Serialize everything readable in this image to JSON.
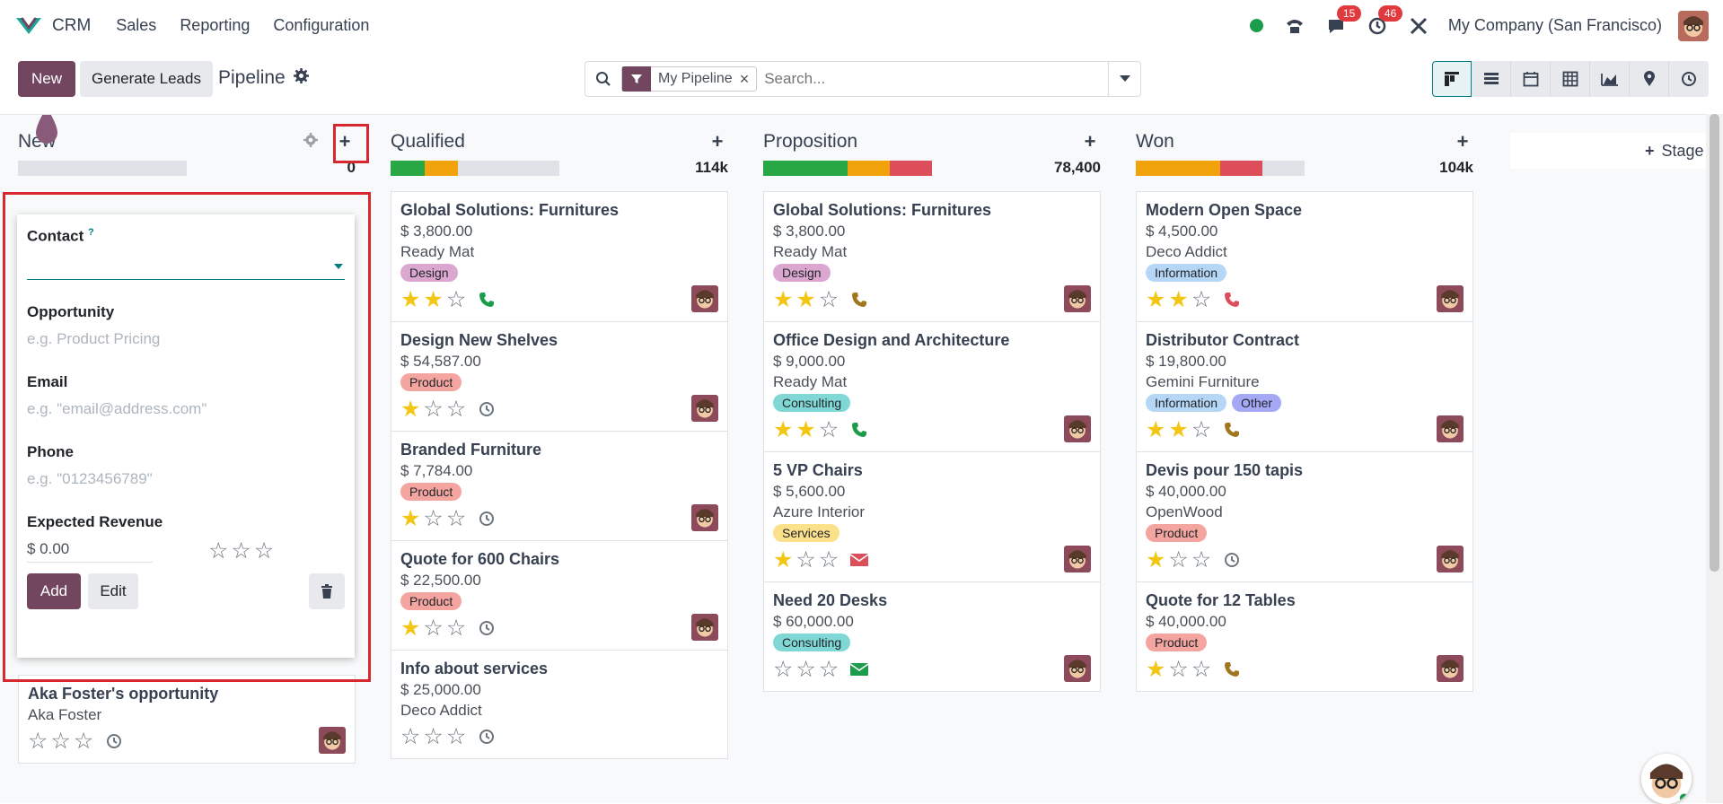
{
  "navbar": {
    "app_name": "CRM",
    "menus": [
      "Sales",
      "Reporting",
      "Configuration"
    ],
    "messages_count": "15",
    "activities_count": "46",
    "company": "My Company (San Francisco)"
  },
  "control": {
    "new_label": "New",
    "generate_label": "Generate Leads",
    "title": "Pipeline",
    "facet_label": "My Pipeline",
    "search_placeholder": "Search..."
  },
  "columns": [
    {
      "title": "New",
      "total": "0",
      "progress": []
    },
    {
      "title": "Qualified",
      "total": "114k",
      "progress": [
        {
          "color": "#28a745",
          "pct": 20
        },
        {
          "color": "#f0a30a",
          "pct": 20
        }
      ]
    },
    {
      "title": "Proposition",
      "total": "78,400",
      "progress": [
        {
          "color": "#28a745",
          "pct": 50
        },
        {
          "color": "#f0a30a",
          "pct": 25
        },
        {
          "color": "#dc4f5a",
          "pct": 25
        }
      ]
    },
    {
      "title": "Won",
      "total": "104k",
      "progress": [
        {
          "color": "#f0a30a",
          "pct": 50
        },
        {
          "color": "#dc4f5a",
          "pct": 25
        }
      ]
    }
  ],
  "quick_create": {
    "contact_label": "Contact",
    "opportunity_label": "Opportunity",
    "opportunity_placeholder": "e.g. Product Pricing",
    "email_label": "Email",
    "email_placeholder": "e.g. \"email@address.com\"",
    "phone_label": "Phone",
    "phone_placeholder": "e.g. \"0123456789\"",
    "revenue_label": "Expected Revenue",
    "revenue_value": "$ 0.00",
    "add_label": "Add",
    "edit_label": "Edit"
  },
  "new_col_cards": [
    {
      "title": "Aka Foster's opportunity",
      "customer": "Aka Foster"
    }
  ],
  "qualified_cards": [
    {
      "title": "Global Solutions: Furnitures",
      "amount": "$ 3,800.00",
      "customer": "Ready Mat",
      "tags": [
        {
          "label": "Design",
          "bg": "#dba7d1"
        }
      ]
    },
    {
      "title": "Design New Shelves",
      "amount": "$ 54,587.00",
      "tags": [
        {
          "label": "Product",
          "bg": "#f5a5a0"
        }
      ]
    },
    {
      "title": "Branded Furniture",
      "amount": "$ 7,784.00",
      "tags": [
        {
          "label": "Product",
          "bg": "#f5a5a0"
        }
      ]
    },
    {
      "title": "Quote for 600 Chairs",
      "amount": "$ 22,500.00",
      "tags": [
        {
          "label": "Product",
          "bg": "#f5a5a0"
        }
      ]
    },
    {
      "title": "Info about services",
      "amount": "$ 25,000.00",
      "customer": "Deco Addict"
    }
  ],
  "proposition_cards": [
    {
      "title": "Global Solutions: Furnitures",
      "amount": "$ 3,800.00",
      "customer": "Ready Mat",
      "tags": [
        {
          "label": "Design",
          "bg": "#dba7d1"
        }
      ]
    },
    {
      "title": "Office Design and Architecture",
      "amount": "$ 9,000.00",
      "customer": "Ready Mat",
      "tags": [
        {
          "label": "Consulting",
          "bg": "#7fd8d5"
        }
      ]
    },
    {
      "title": "5 VP Chairs",
      "amount": "$ 5,600.00",
      "customer": "Azure Interior",
      "tags": [
        {
          "label": "Services",
          "bg": "#fbe18a"
        }
      ]
    },
    {
      "title": "Need 20 Desks",
      "amount": "$ 60,000.00",
      "tags": [
        {
          "label": "Consulting",
          "bg": "#7fd8d5"
        }
      ]
    }
  ],
  "won_cards": [
    {
      "title": "Modern Open Space",
      "amount": "$ 4,500.00",
      "customer": "Deco Addict",
      "tags": [
        {
          "label": "Information",
          "bg": "#b5d6f5"
        }
      ]
    },
    {
      "title": "Distributor Contract",
      "amount": "$ 19,800.00",
      "customer": "Gemini Furniture",
      "tags": [
        {
          "label": "Information",
          "bg": "#b5d6f5"
        },
        {
          "label": "Other",
          "bg": "#a5a9f5"
        }
      ]
    },
    {
      "title": "Devis pour 150 tapis",
      "amount": "$ 40,000.00",
      "customer": "OpenWood",
      "tags": [
        {
          "label": "Product",
          "bg": "#f5a5a0"
        }
      ]
    },
    {
      "title": "Quote for 12 Tables",
      "amount": "$ 40,000.00",
      "tags": [
        {
          "label": "Product",
          "bg": "#f5a5a0"
        }
      ]
    }
  ],
  "stage_add_label": "Stage"
}
